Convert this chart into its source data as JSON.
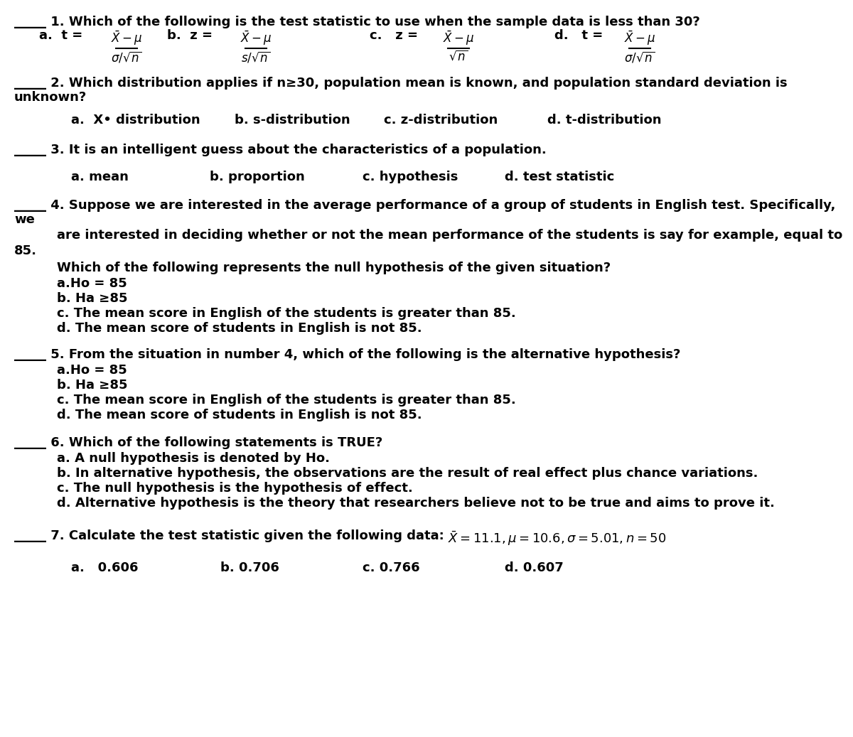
{
  "bg_color": "#ffffff",
  "q1_line": "_____ 1. Which of the following is the test statistic to use when the sample data is less than 30?",
  "q2_line1": "_____ 2. Which distribution applies if n≥30, population mean is known, and population standard deviation is",
  "q2_line2": "unknown?",
  "q2_choices": [
    "a.  X• distribution",
    "b. s-distribution",
    "c. z-distribution",
    "d. t-distribution"
  ],
  "q3_line": "_____ 3. It is an intelligent guess about the characteristics of a population.",
  "q3_choices": [
    "a. mean",
    "b. proportion",
    "c. hypothesis",
    "d. test statistic"
  ],
  "q4_line1": "_____ 4. Suppose we are interested in the average performance of a group of students in English test. Specifically,",
  "q4_line2": "we",
  "q4_line3": "    are interested in deciding whether or not the mean performance of the students is say for example, equal to",
  "q4_line4": "85.",
  "q4_subq": "        Which of the following represents the null hypothesis of the given situation?",
  "q4_choices": [
    "        a.Ho = 85",
    "        b. Ha ≥85",
    "        c. The mean score in English of the students is greater than 85.",
    "        d. The mean score of students in English is not 85."
  ],
  "q5_line": "_____ 5. From the situation in number 4, which of the following is the alternative hypothesis?",
  "q5_choices": [
    "        a.Ho = 85",
    "        b. Ha ≥85",
    "        c. The mean score in English of the students is greater than 85.",
    "        d. The mean score of students in English is not 85."
  ],
  "q6_line": "_____ 6. Which of the following statements is TRUE?",
  "q6_choices": [
    "        a. A null hypothesis is denoted by Ho.",
    "        b. In alternative hypothesis, the observations are the result of real effect plus chance variations.",
    "        c. The null hypothesis is the hypothesis of effect.",
    "        d. Alternative hypothesis is the theory that researchers believe not to be true and aims to prove it."
  ],
  "q7_line": "_____ 7. Calculate the test statistic given the following data: ",
  "q7_math": "$\\bar{X} = 11.1, \\mu = 10.6, \\sigma = 5.01, n = 50$",
  "q7_choices": [
    "a.   0.606",
    "b. 0.706",
    "c. 0.766",
    "d. 0.607"
  ],
  "q1_fracs": [
    {
      "label": "a",
      "prefix": "a.  t =",
      "num": "$\\bar{X}-\\mu$",
      "den": "$\\sigma/\\sqrt{n}$"
    },
    {
      "label": "b",
      "prefix": "b.  z =",
      "num": "$\\bar{X}-\\mu$",
      "den": "$s/\\sqrt{n}$"
    },
    {
      "label": "c",
      "prefix": "c.   z =",
      "num": "$\\bar{X}-\\mu$",
      "den": "$\\sqrt{n}$"
    },
    {
      "label": "d",
      "prefix": "d.   t =",
      "num": "$\\bar{X}-\\mu$",
      "den": "$\\sigma/\\sqrt{n}$"
    }
  ]
}
